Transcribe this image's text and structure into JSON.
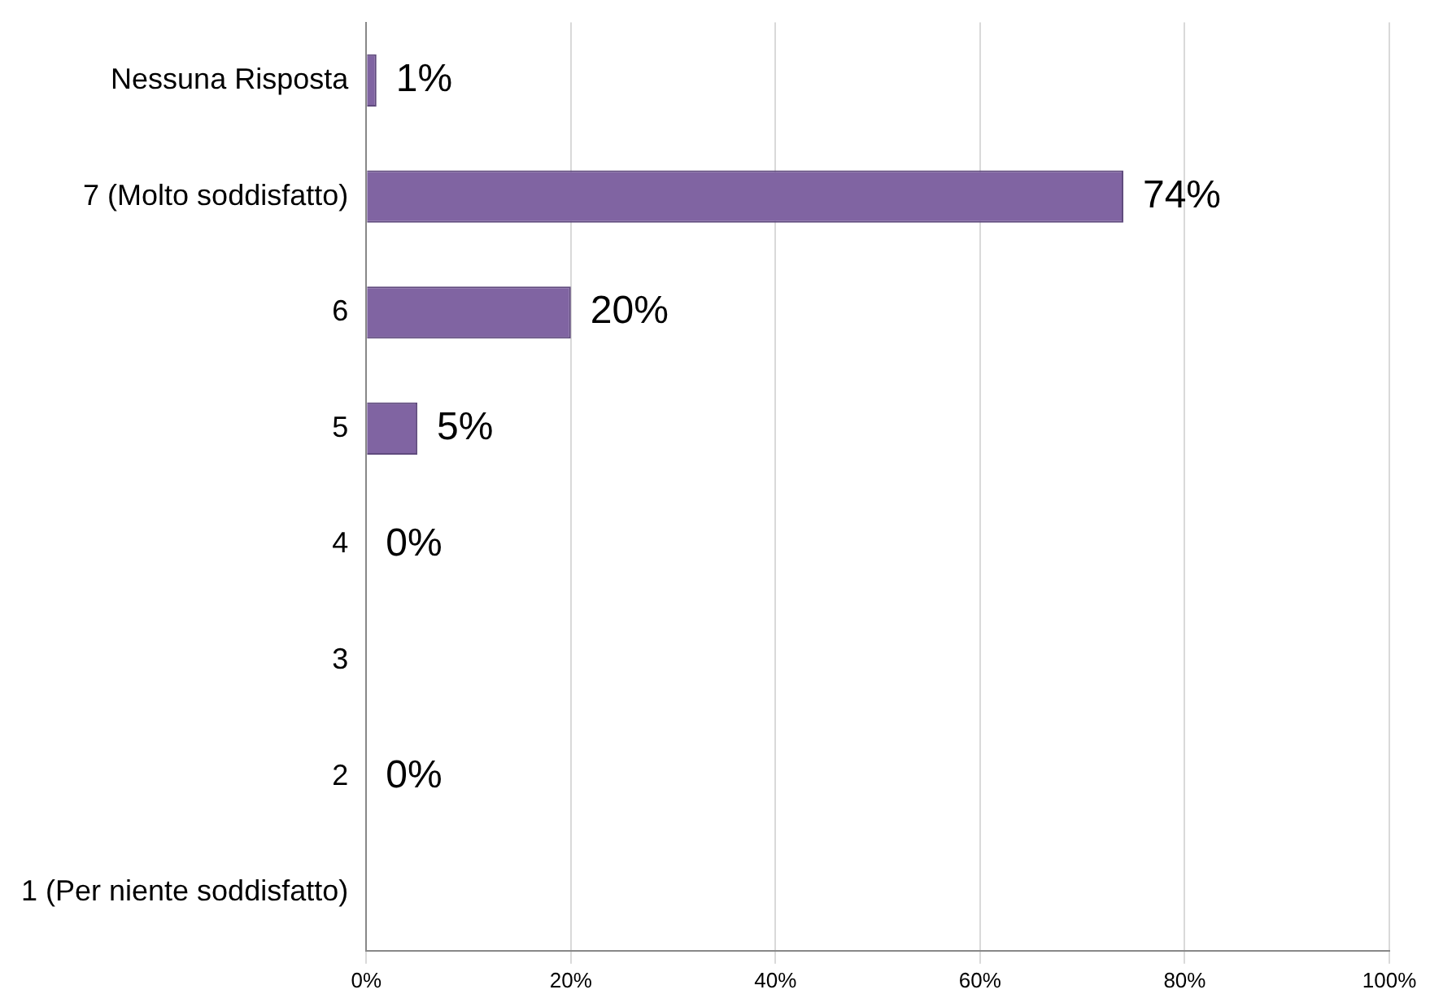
{
  "chart_data": {
    "type": "bar",
    "orientation": "horizontal",
    "categories": [
      "Nessuna Risposta",
      "7 (Molto soddisfatto)",
      "6",
      "5",
      "4",
      "3",
      "2",
      "1 (Per niente soddisfatto)"
    ],
    "values": [
      1,
      74,
      20,
      5,
      0,
      null,
      0,
      null
    ],
    "value_labels": [
      "1%",
      "74%",
      "20%",
      "5%",
      "0%",
      null,
      "0%",
      null
    ],
    "color": "#8064a2",
    "xlim": [
      0,
      100
    ],
    "xticks": [
      {
        "value": 0,
        "label": "0%"
      },
      {
        "value": 20,
        "label": "20%"
      },
      {
        "value": 40,
        "label": "40%"
      },
      {
        "value": 60,
        "label": "60%"
      },
      {
        "value": 80,
        "label": "80%"
      },
      {
        "value": 100,
        "label": "100%"
      }
    ],
    "grid": "x",
    "legend": false
  }
}
